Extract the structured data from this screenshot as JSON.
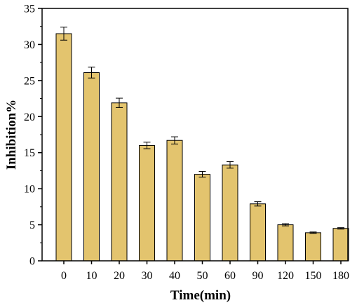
{
  "chart_data": {
    "type": "bar",
    "xlabel": "Time(min)",
    "ylabel": "Inhibition%",
    "categories": [
      "0",
      "10",
      "20",
      "30",
      "40",
      "50",
      "60",
      "90",
      "120",
      "150",
      "180"
    ],
    "values": [
      31.5,
      26.1,
      21.9,
      16.0,
      16.7,
      12.0,
      13.3,
      7.9,
      5.0,
      3.9,
      4.5
    ],
    "errors": [
      0.9,
      0.75,
      0.65,
      0.45,
      0.5,
      0.4,
      0.45,
      0.3,
      0.15,
      0.1,
      0.1
    ],
    "ylim": [
      0,
      35
    ],
    "yticks": [
      0,
      5,
      10,
      15,
      20,
      25,
      30,
      35
    ],
    "grid": false,
    "bar_color": "#E3C46E",
    "bar_edge_color": "#000000"
  }
}
